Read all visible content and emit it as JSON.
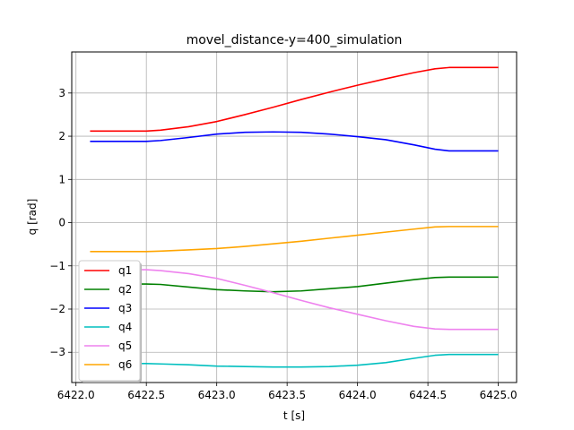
{
  "chart_data": {
    "type": "line",
    "title": "movel_distance-y=400_simulation",
    "xlabel": "t [s]",
    "ylabel": "q [rad]",
    "xlim": [
      6421.97,
      6425.13
    ],
    "ylim": [
      -3.7,
      3.95
    ],
    "xticks": [
      6422.0,
      6422.5,
      6423.0,
      6423.5,
      6424.0,
      6424.5,
      6425.0
    ],
    "xtick_labels": [
      "6422.0",
      "6422.5",
      "6423.0",
      "6423.5",
      "6424.0",
      "6424.5",
      "6425.0"
    ],
    "yticks": [
      -3,
      -2,
      -1,
      0,
      1,
      2,
      3
    ],
    "ytick_labels": [
      "−3",
      "−2",
      "−1",
      "0",
      "1",
      "2",
      "3"
    ],
    "grid": true,
    "legend_position": "lower-left",
    "x": [
      6422.1,
      6422.3,
      6422.5,
      6422.6,
      6422.8,
      6423.0,
      6423.2,
      6423.4,
      6423.6,
      6423.8,
      6424.0,
      6424.2,
      6424.4,
      6424.55,
      6424.65,
      6424.8,
      6425.0
    ],
    "series": [
      {
        "name": "q1",
        "color": "#ff0000",
        "values": [
          2.12,
          2.12,
          2.12,
          2.14,
          2.22,
          2.34,
          2.5,
          2.67,
          2.85,
          3.02,
          3.18,
          3.33,
          3.47,
          3.56,
          3.59,
          3.59,
          3.59
        ]
      },
      {
        "name": "q2",
        "color": "#008000",
        "values": [
          -1.42,
          -1.42,
          -1.42,
          -1.43,
          -1.49,
          -1.55,
          -1.58,
          -1.6,
          -1.58,
          -1.53,
          -1.48,
          -1.4,
          -1.32,
          -1.27,
          -1.26,
          -1.26,
          -1.26
        ]
      },
      {
        "name": "q3",
        "color": "#0000ff",
        "values": [
          1.88,
          1.88,
          1.88,
          1.9,
          1.97,
          2.05,
          2.09,
          2.1,
          2.09,
          2.05,
          1.99,
          1.92,
          1.8,
          1.7,
          1.66,
          1.66,
          1.66
        ]
      },
      {
        "name": "q4",
        "color": "#00bfbf",
        "values": [
          -3.26,
          -3.26,
          -3.26,
          -3.27,
          -3.29,
          -3.32,
          -3.33,
          -3.34,
          -3.34,
          -3.33,
          -3.3,
          -3.24,
          -3.14,
          -3.07,
          -3.05,
          -3.05,
          -3.05
        ]
      },
      {
        "name": "q5",
        "color": "#ee82ee",
        "values": [
          -1.09,
          -1.09,
          -1.09,
          -1.11,
          -1.18,
          -1.29,
          -1.45,
          -1.62,
          -1.8,
          -1.97,
          -2.12,
          -2.27,
          -2.4,
          -2.46,
          -2.47,
          -2.47,
          -2.47
        ]
      },
      {
        "name": "q6",
        "color": "#ffa500",
        "values": [
          -0.67,
          -0.67,
          -0.67,
          -0.66,
          -0.63,
          -0.6,
          -0.55,
          -0.49,
          -0.43,
          -0.36,
          -0.29,
          -0.22,
          -0.15,
          -0.1,
          -0.09,
          -0.09,
          -0.09
        ]
      }
    ]
  }
}
